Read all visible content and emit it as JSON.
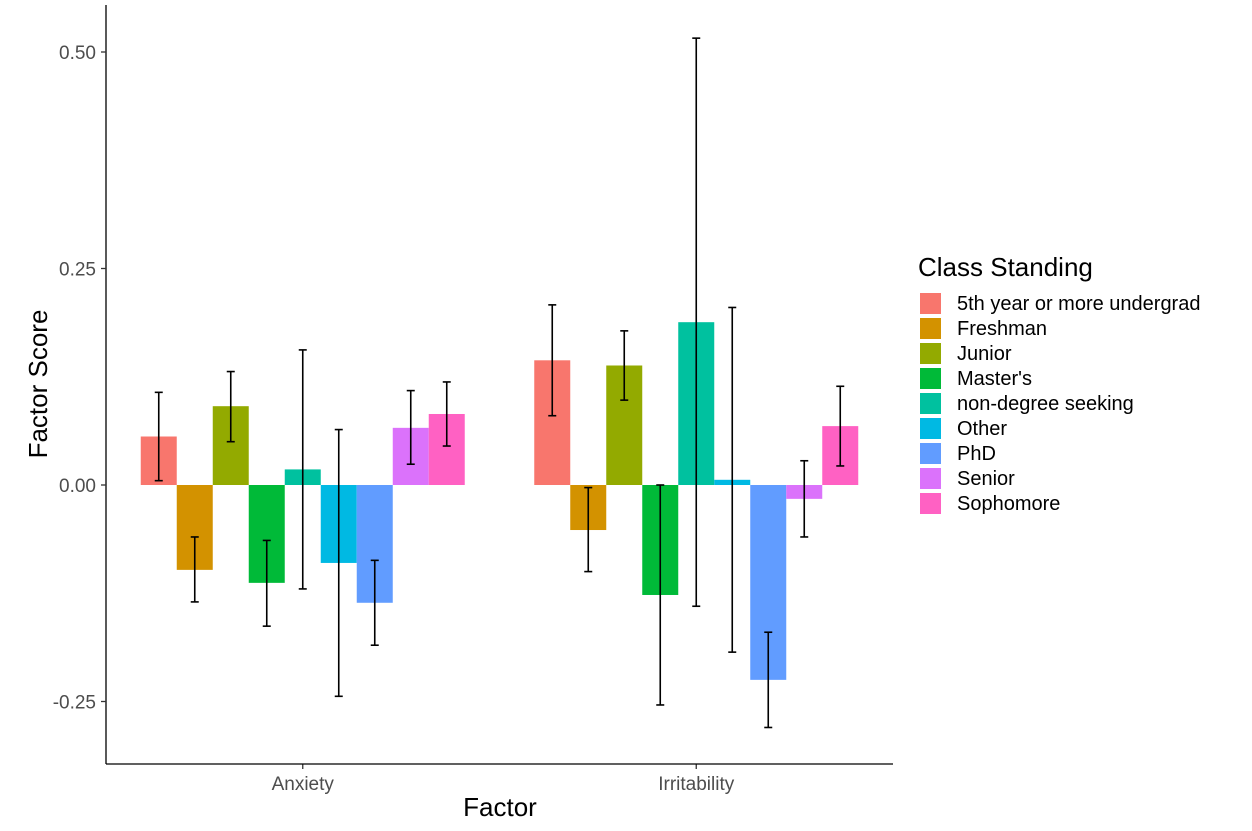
{
  "chart_data": {
    "type": "bar",
    "title": "",
    "xlabel": "Factor",
    "ylabel": "Factor Score",
    "categories": [
      "Anxiety",
      "Irritability"
    ],
    "ylim": [
      -0.3,
      0.55
    ],
    "yticks": [
      -0.25,
      0.0,
      0.25,
      0.5
    ],
    "ytick_labels": [
      "-0.25",
      "0.00",
      "0.25",
      "0.50"
    ],
    "grid": false,
    "error_bars": true,
    "legend": {
      "title": "Class Standing",
      "position": "right"
    },
    "series": [
      {
        "name": "5th year or more undergrad",
        "color": "#F8766D",
        "values": [
          0.056,
          0.144
        ],
        "lower": [
          0.005,
          0.08
        ],
        "upper": [
          0.107,
          0.208
        ]
      },
      {
        "name": "Freshman",
        "color": "#D39200",
        "values": [
          -0.098,
          -0.052
        ],
        "lower": [
          -0.135,
          -0.1
        ],
        "upper": [
          -0.06,
          -0.003
        ]
      },
      {
        "name": "Junior",
        "color": "#93AA00",
        "values": [
          0.091,
          0.138
        ],
        "lower": [
          0.05,
          0.098
        ],
        "upper": [
          0.131,
          0.178
        ]
      },
      {
        "name": "Master's",
        "color": "#00BA38",
        "values": [
          -0.113,
          -0.127
        ],
        "lower": [
          -0.163,
          -0.254
        ],
        "upper": [
          -0.064,
          0.0
        ]
      },
      {
        "name": "non-degree seeking",
        "color": "#00C19F",
        "values": [
          0.018,
          0.188
        ],
        "lower": [
          -0.12,
          -0.14
        ],
        "upper": [
          0.156,
          0.516
        ]
      },
      {
        "name": "Other",
        "color": "#00B9E3",
        "values": [
          -0.09,
          0.006
        ],
        "lower": [
          -0.244,
          -0.193
        ],
        "upper": [
          0.064,
          0.205
        ]
      },
      {
        "name": "PhD",
        "color": "#619CFF",
        "values": [
          -0.136,
          -0.225
        ],
        "lower": [
          -0.185,
          -0.28
        ],
        "upper": [
          -0.087,
          -0.17
        ]
      },
      {
        "name": "Senior",
        "color": "#DB72FB",
        "values": [
          0.066,
          -0.016
        ],
        "lower": [
          0.024,
          -0.06
        ],
        "upper": [
          0.109,
          0.028
        ]
      },
      {
        "name": "Sophomore",
        "color": "#FF61C3",
        "values": [
          0.082,
          0.068
        ],
        "lower": [
          0.045,
          0.022
        ],
        "upper": [
          0.119,
          0.114
        ]
      }
    ]
  }
}
